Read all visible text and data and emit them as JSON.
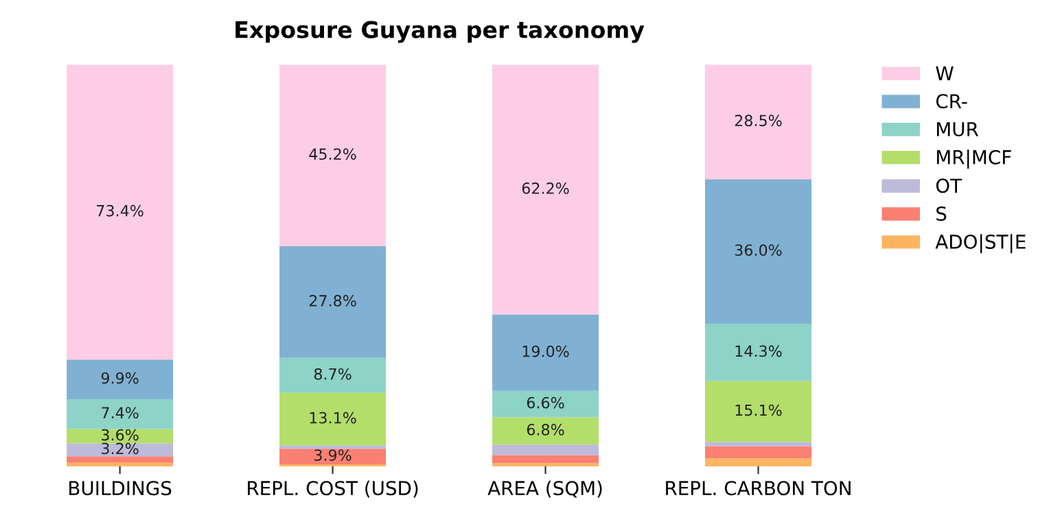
{
  "chart_data": {
    "type": "bar",
    "stacked": true,
    "title": "Exposure Guyana per taxonomy",
    "categories": [
      "BUILDINGS",
      "REPL. COST (USD)",
      "AREA (SQM)",
      "REPL. CARBON TON"
    ],
    "legend": "top right",
    "grid": false,
    "series": [
      {
        "name": "ADO|ST|E",
        "color": "#fdb462",
        "values": [
          0.9,
          0.5,
          0.8,
          2.0
        ],
        "value_labels": [
          null,
          null,
          null,
          null
        ]
      },
      {
        "name": "S",
        "color": "#fb8072",
        "values": [
          1.6,
          3.9,
          2.0,
          3.0
        ],
        "value_labels": [
          null,
          "3.9%",
          null,
          null
        ]
      },
      {
        "name": "OT",
        "color": "#bebada",
        "values": [
          3.2,
          0.8,
          2.6,
          1.1
        ],
        "value_labels": [
          "3.2%",
          null,
          null,
          null
        ]
      },
      {
        "name": "MR|MCF",
        "color": "#b3de69",
        "values": [
          3.6,
          13.1,
          6.8,
          15.1
        ],
        "value_labels": [
          "3.6%",
          "13.1%",
          "6.8%",
          "15.1%"
        ]
      },
      {
        "name": "MUR",
        "color": "#8dd3c7",
        "values": [
          7.4,
          8.7,
          6.6,
          14.3
        ],
        "value_labels": [
          "7.4%",
          "8.7%",
          "6.6%",
          "14.3%"
        ]
      },
      {
        "name": "CR-",
        "color": "#80b1d3",
        "values": [
          9.9,
          27.8,
          19.0,
          36.0
        ],
        "value_labels": [
          "9.9%",
          "27.8%",
          "19.0%",
          "36.0%"
        ]
      },
      {
        "name": "W",
        "color": "#fccde5",
        "values": [
          73.4,
          45.2,
          62.2,
          28.5
        ],
        "value_labels": [
          "73.4%",
          "45.2%",
          "62.2%",
          "28.5%"
        ]
      }
    ]
  }
}
